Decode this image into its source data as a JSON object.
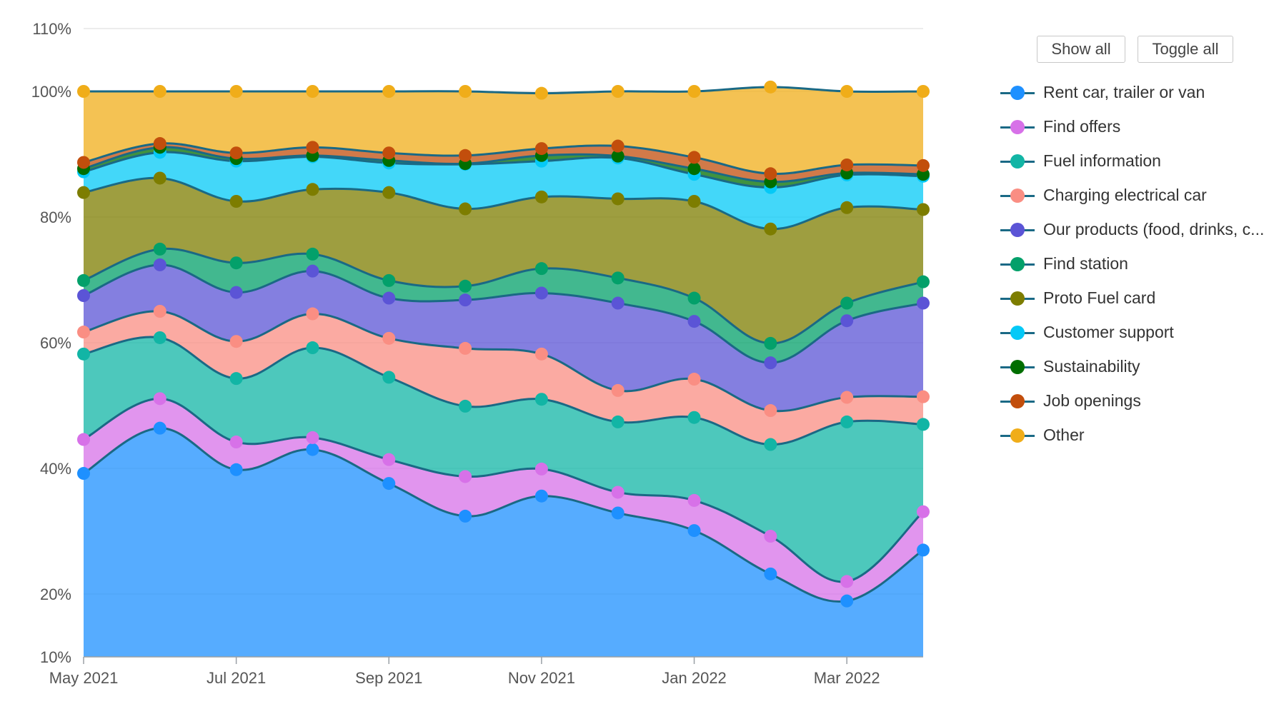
{
  "buttons": {
    "show_all": "Show all",
    "toggle_all": "Toggle all"
  },
  "colors": {
    "line": "#1a6985",
    "grid": "#e6e6e6",
    "axis": "#9aa0a6"
  },
  "chart_data": {
    "type": "area",
    "stacked": true,
    "x": [
      "May 2021",
      "Jun 2021",
      "Jul 2021",
      "Aug 2021",
      "Sep 2021",
      "Oct 2021",
      "Nov 2021",
      "Dec 2021",
      "Jan 2022",
      "Feb 2022",
      "Mar 2022",
      "Apr 2022"
    ],
    "x_tick_labels": [
      "May 2021",
      "Jul 2021",
      "Sep 2021",
      "Nov 2021",
      "Jan 2022",
      "Mar 2022"
    ],
    "y_tick_labels": [
      "10%",
      "20%",
      "40%",
      "60%",
      "80%",
      "100%",
      "110%"
    ],
    "ylim": [
      10,
      110
    ],
    "grid": true,
    "legend_position": "right",
    "series": [
      {
        "name": "Rent car, trailer or van",
        "color": "#1e90ff",
        "values": [
          39.2,
          46.4,
          39.8,
          43.0,
          37.6,
          32.4,
          35.6,
          32.9,
          30.1,
          23.2,
          18.9,
          27.0
        ]
      },
      {
        "name": "Find offers",
        "color": "#d771e8",
        "values": [
          5.4,
          4.7,
          4.4,
          1.9,
          3.8,
          6.3,
          4.3,
          3.3,
          4.8,
          6.0,
          3.1,
          6.1
        ]
      },
      {
        "name": "Fuel information",
        "color": "#12b5a5",
        "values": [
          13.6,
          9.7,
          10.1,
          14.3,
          13.1,
          11.2,
          11.1,
          11.2,
          13.2,
          14.6,
          25.4,
          13.9
        ]
      },
      {
        "name": "Charging electrical car",
        "color": "#fa8e83",
        "values": [
          3.5,
          4.2,
          5.9,
          5.4,
          6.2,
          9.2,
          7.2,
          5.0,
          6.1,
          5.4,
          3.9,
          4.4
        ]
      },
      {
        "name": "Our products (food, drinks, c...",
        "color": "#5b54d6",
        "values": [
          5.8,
          7.4,
          7.8,
          6.8,
          6.4,
          7.7,
          9.7,
          13.9,
          9.2,
          7.6,
          12.2,
          14.9
        ]
      },
      {
        "name": "Find station",
        "color": "#03a06a",
        "values": [
          2.4,
          2.5,
          4.7,
          2.7,
          2.8,
          2.2,
          3.9,
          4.0,
          3.7,
          3.1,
          2.8,
          3.4
        ]
      },
      {
        "name": "Proto Fuel card",
        "color": "#7d7d00",
        "values": [
          14.0,
          11.3,
          9.8,
          10.3,
          14.0,
          12.3,
          11.4,
          12.6,
          15.4,
          18.2,
          15.2,
          11.5
        ]
      },
      {
        "name": "Customer support",
        "color": "#04c9f7",
        "values": [
          3.3,
          4.1,
          6.4,
          5.2,
          4.7,
          7.1,
          5.7,
          6.5,
          4.3,
          6.6,
          5.2,
          5.3
        ]
      },
      {
        "name": "Sustainability",
        "color": "#006e00",
        "values": [
          0.5,
          0.8,
          0.4,
          0.2,
          0.4,
          0.1,
          0.9,
          0.3,
          0.9,
          0.9,
          0.3,
          0.3
        ]
      },
      {
        "name": "Job openings",
        "color": "#c24e0c",
        "values": [
          1.0,
          0.6,
          0.9,
          1.3,
          1.2,
          1.3,
          1.1,
          1.6,
          1.8,
          1.3,
          1.3,
          1.4
        ]
      },
      {
        "name": "Other",
        "color": "#f0ad19",
        "values": [
          11.3,
          8.3,
          9.8,
          8.9,
          9.8,
          10.2,
          8.8,
          8.7,
          10.5,
          13.8,
          11.7,
          11.8
        ]
      }
    ]
  }
}
